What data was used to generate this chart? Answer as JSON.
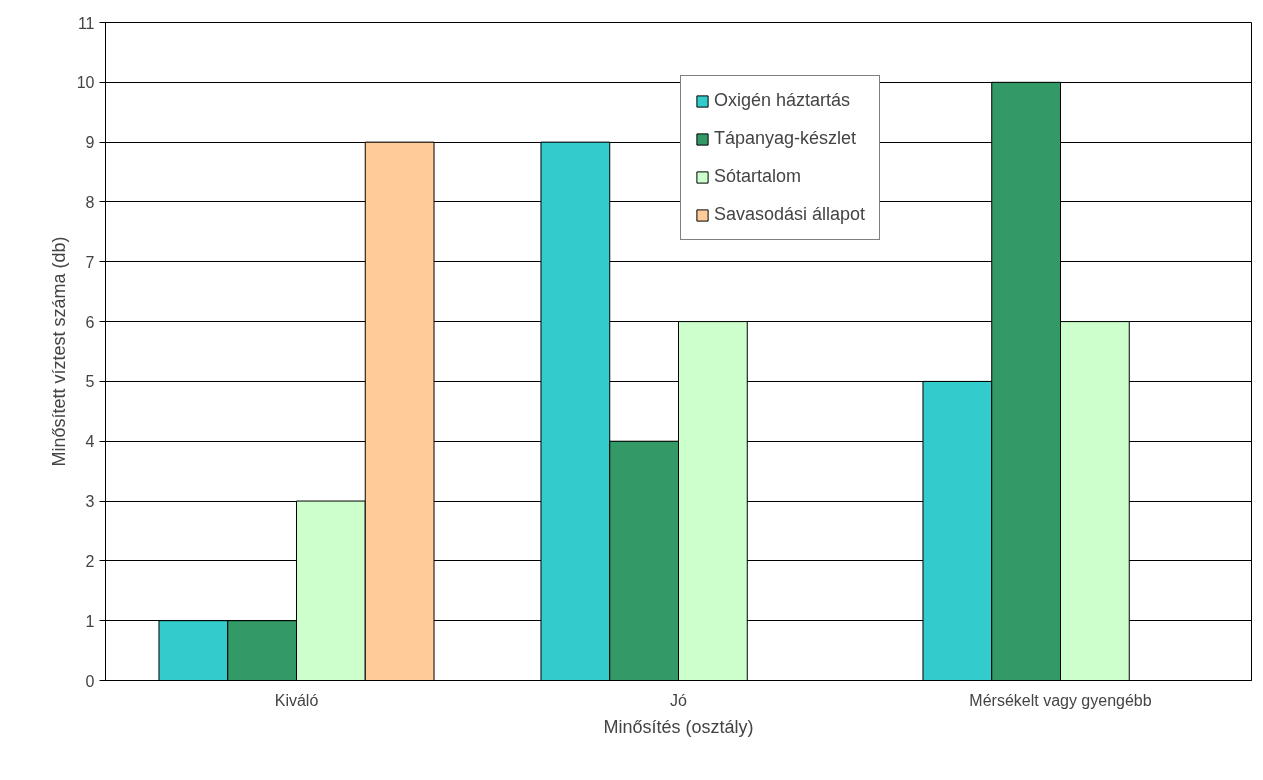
{
  "chart_data": {
    "type": "bar",
    "xlabel": "Minősítés (osztály)",
    "ylabel": "Minősített víztest száma (db)",
    "categories": [
      "Kiváló",
      "Jó",
      "Mérsékelt vagy gyengébb"
    ],
    "series": [
      {
        "name": "Oxigén háztartás",
        "color": "#33cccc",
        "values": [
          1,
          9,
          5
        ]
      },
      {
        "name": "Tápanyag-készlet",
        "color": "#339966",
        "values": [
          1,
          4,
          10
        ]
      },
      {
        "name": "Sótartalom",
        "color": "#ccffcc",
        "values": [
          3,
          6,
          6
        ]
      },
      {
        "name": "Savasodási állapot",
        "color": "#ffcc99",
        "values": [
          9,
          null,
          null
        ]
      }
    ],
    "ylim": [
      0,
      11
    ],
    "yticks": [
      0,
      1,
      2,
      3,
      4,
      5,
      6,
      7,
      8,
      9,
      10,
      11
    ],
    "grid": "y",
    "legend": "top right"
  }
}
